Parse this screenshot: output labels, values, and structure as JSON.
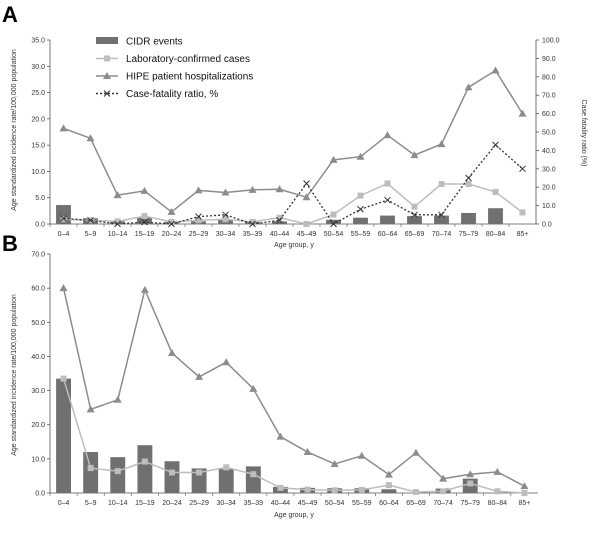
{
  "chart_data": [
    {
      "panel": "A",
      "type": "bar",
      "xlabel": "Age group, y",
      "ylabel": "Age standardized incidence rate/100,000 population",
      "ylabel_right": "Case fatality ratio (%)",
      "ylim": [
        0,
        35
      ],
      "ylim_right": [
        0,
        100
      ],
      "yticks": [
        "0.0",
        "5.0",
        "10.0",
        "15.0",
        "20.0",
        "25.0",
        "30.0",
        "35.0"
      ],
      "yticks_right": [
        "0.0",
        "10.0",
        "20.0",
        "30.0",
        "40.0",
        "50.0",
        "60.0",
        "70.0",
        "80.0",
        "90.0",
        "100.0"
      ],
      "categories": [
        "0–4",
        "5–9",
        "10–14",
        "15–19",
        "20–24",
        "25–29",
        "30–34",
        "35–39",
        "40–44",
        "45–49",
        "50–54",
        "55–59",
        "60–64",
        "65–69",
        "70–74",
        "75–79",
        "80–84",
        "85+"
      ],
      "series": [
        {
          "name": "CIDR events",
          "kind": "bar",
          "color": "#707070",
          "axis": "left",
          "values": [
            3.6,
            1.1,
            0.5,
            1.2,
            0.4,
            0.5,
            0.8,
            0.4,
            0.5,
            0.0,
            0.8,
            1.2,
            1.6,
            1.5,
            1.6,
            2.1,
            3.0,
            0.0
          ]
        },
        {
          "name": "Laboratory-confirmed cases",
          "kind": "line",
          "marker": "square",
          "color": "#bdbdbd",
          "axis": "left",
          "values": [
            0.9,
            0.7,
            0.5,
            1.5,
            0.4,
            0.7,
            0.9,
            0.4,
            1.2,
            0.0,
            1.8,
            5.4,
            7.7,
            3.3,
            7.6,
            7.6,
            6.1,
            2.2
          ]
        },
        {
          "name": "HIPE patient hospitalizations",
          "kind": "line",
          "marker": "triangle",
          "color": "#8c8c8c",
          "axis": "left",
          "values": [
            18.2,
            16.3,
            5.5,
            6.3,
            2.3,
            6.4,
            6.0,
            6.5,
            6.6,
            5.1,
            12.2,
            12.8,
            16.9,
            13.1,
            15.2,
            26.0,
            29.2,
            21.0
          ]
        },
        {
          "name": "Case-fatality ratio, %",
          "kind": "line",
          "marker": "x",
          "dash": true,
          "color": "#333333",
          "axis": "right",
          "values": [
            3,
            2,
            0,
            1,
            0,
            4,
            5,
            0,
            2,
            22,
            0,
            8,
            13,
            5,
            5,
            25,
            43,
            30
          ]
        }
      ],
      "legend_position": "top-left"
    },
    {
      "panel": "B",
      "type": "bar",
      "xlabel": "Age group, y",
      "ylabel": "Age standardized incidence rate/100,000 population",
      "ylim": [
        0,
        70
      ],
      "yticks": [
        "0.0",
        "10.0",
        "20.0",
        "30.0",
        "40.0",
        "50.0",
        "60.0",
        "70.0"
      ],
      "categories": [
        "0–4",
        "5–9",
        "10–14",
        "15–19",
        "20–24",
        "25–29",
        "30–34",
        "35–39",
        "40–44",
        "45–49",
        "50–54",
        "55–59",
        "60–64",
        "65–69",
        "70–74",
        "75–79",
        "80–84",
        "85+"
      ],
      "series": [
        {
          "name": "CIDR events",
          "kind": "bar",
          "color": "#707070",
          "values": [
            33.5,
            12.0,
            10.5,
            14.0,
            9.3,
            7.2,
            7.0,
            7.8,
            1.8,
            1.5,
            1.4,
            1.4,
            1.1,
            0.0,
            1.3,
            4.2,
            0.0,
            0.0
          ]
        },
        {
          "name": "Laboratory-confirmed cases",
          "kind": "line",
          "marker": "square",
          "color": "#bdbdbd",
          "values": [
            33.5,
            7.3,
            6.4,
            9.2,
            6.0,
            6.0,
            7.5,
            5.5,
            1.5,
            1.0,
            0.8,
            0.9,
            2.3,
            0.3,
            0.5,
            2.8,
            0.5,
            0.0
          ]
        },
        {
          "name": "HIPE patient hospitalizations",
          "kind": "line",
          "marker": "triangle",
          "color": "#8c8c8c",
          "values": [
            60.0,
            24.5,
            27.3,
            59.5,
            41.0,
            34.0,
            38.3,
            30.5,
            16.5,
            12.0,
            8.5,
            10.9,
            5.4,
            11.8,
            4.2,
            5.5,
            6.2,
            2.0
          ]
        }
      ]
    }
  ]
}
